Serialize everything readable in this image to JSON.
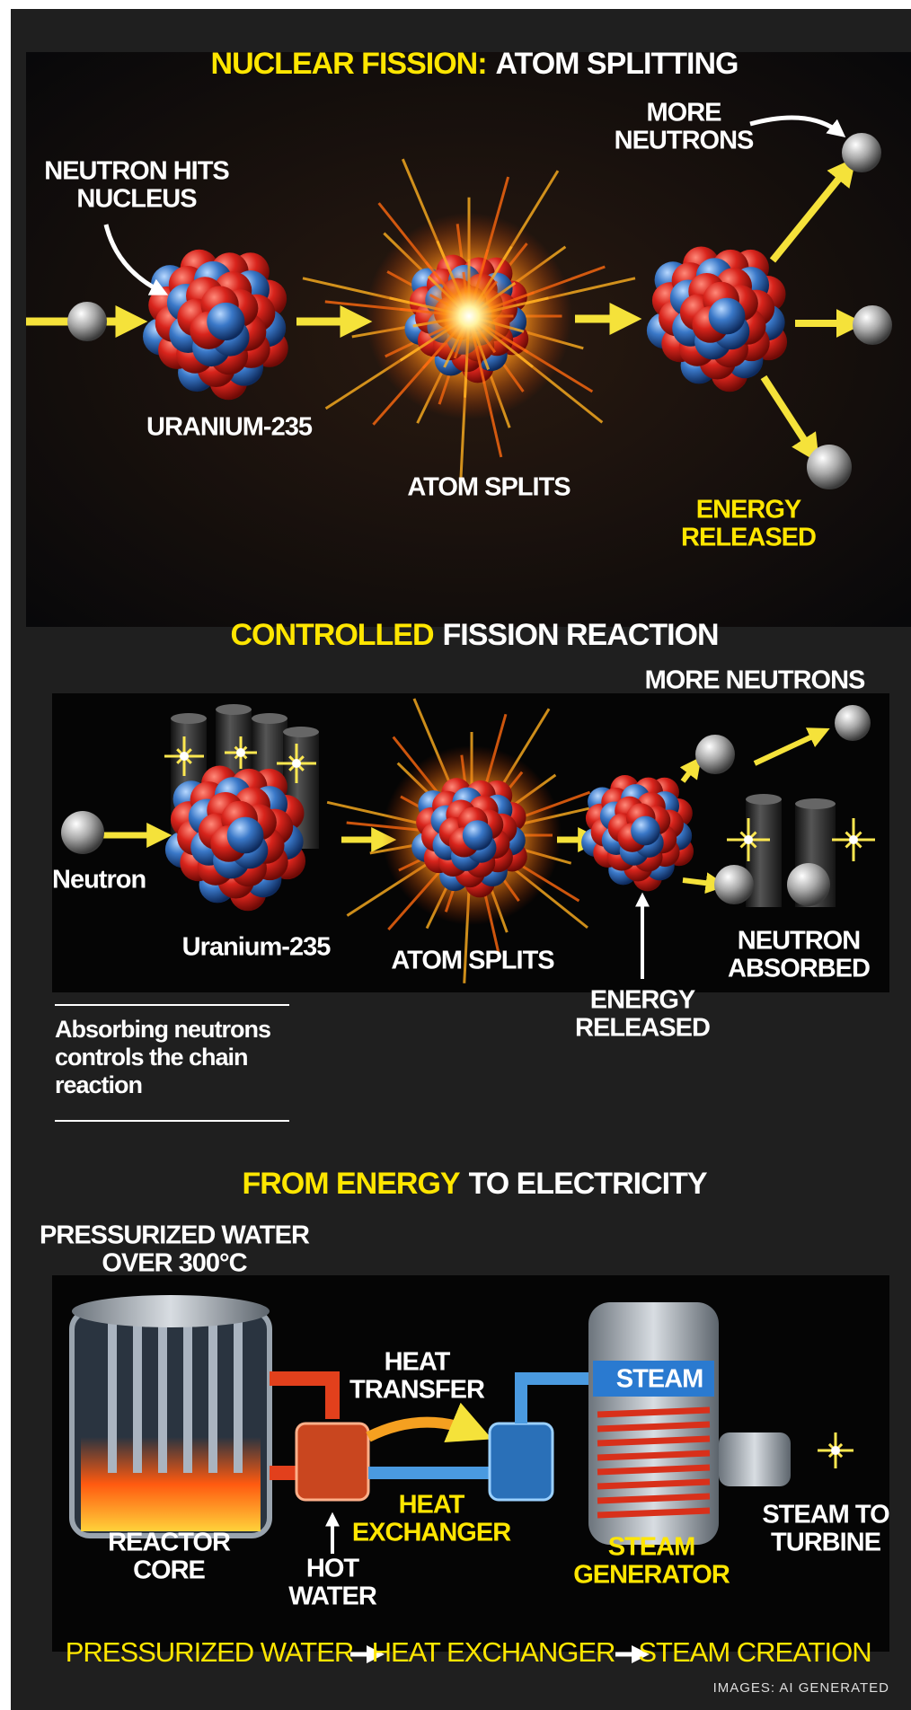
{
  "sections": [
    {
      "title": {
        "highlight": "NUCLEAR FISSION:",
        "rest": "ATOM SPLITTING"
      },
      "labels": [
        {
          "lines": [
            "NEUTRON HITS",
            "NUCLEUS"
          ]
        },
        {
          "lines": [
            "MORE",
            "NEUTRONS"
          ]
        },
        {
          "lines": [
            "URANIUM-235"
          ]
        },
        {
          "lines": [
            "ATOM SPLITS"
          ]
        },
        {
          "lines": [
            "ENERGY",
            "RELEASED"
          ]
        }
      ]
    },
    {
      "title": {
        "highlight": "CONTROLLED",
        "rest": "FISSION REACTION"
      },
      "labels": [
        {
          "lines": [
            "MORE NEUTRONS"
          ]
        },
        {
          "lines": [
            "Neutron"
          ]
        },
        {
          "lines": [
            "Uranium-235"
          ]
        },
        {
          "lines": [
            "ATOM SPLITS"
          ]
        },
        {
          "lines": [
            "NEUTRON",
            "ABSORBED"
          ]
        },
        {
          "lines": [
            "ENERGY",
            "RELEASED"
          ]
        }
      ]
    },
    {
      "title": {
        "highlight": "FROM ENERGY",
        "rest": "TO ELECTRICITY"
      },
      "labels": [
        {
          "lines": [
            "PRESSURIZED WATER",
            "OVER 300°C"
          ]
        },
        {
          "lines": [
            "HEAT",
            "TRANSFER"
          ]
        },
        {
          "lines": [
            "STEAM"
          ]
        },
        {
          "lines": [
            "HEAT",
            "EXCHANGER"
          ]
        },
        {
          "lines": [
            "REACTOR",
            "CORE"
          ]
        },
        {
          "lines": [
            "HOT",
            "WATER"
          ]
        },
        {
          "lines": [
            "STEAM",
            "GENERATOR"
          ]
        },
        {
          "lines": [
            "STEAM TO",
            "TURBINE"
          ]
        }
      ]
    }
  ],
  "caption": [
    "Absorbing neutrons",
    "controls the chain",
    "reaction"
  ],
  "flow": [
    "PRESSURIZED WATER",
    "HEAT EXCHANGER",
    "STEAM CREATION"
  ],
  "credit": "IMAGES: AI GENERATED"
}
